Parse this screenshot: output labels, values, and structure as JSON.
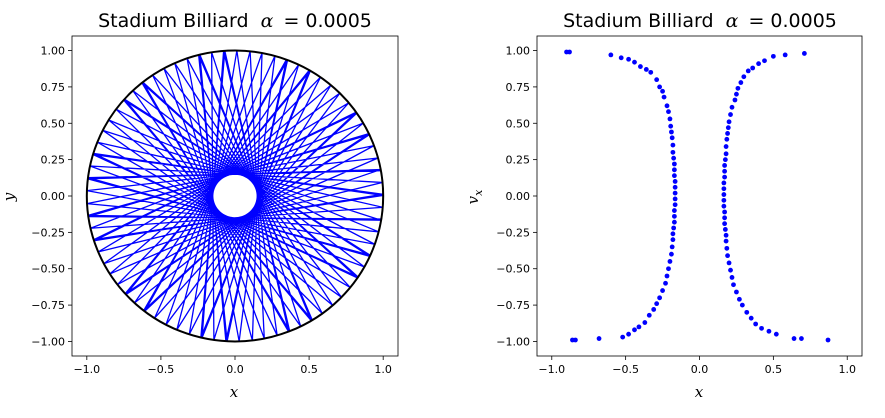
{
  "figure": {
    "charts": [
      {
        "title": "Stadium Billiard",
        "title_alpha_symbol": "α",
        "title_alpha_value": "= 0.0005",
        "xlabel": "x",
        "ylabel": "y",
        "x_ticks": [
          "−1.0",
          "−0.5",
          "0.0",
          "0.5",
          "1.0"
        ],
        "y_ticks": [
          "1.00",
          "0.75",
          "0.50",
          "0.25",
          "0.00",
          "−0.25",
          "−0.50",
          "−0.75",
          "−1.00"
        ]
      },
      {
        "title": "Stadium Billiard",
        "title_alpha_symbol": "α",
        "title_alpha_value": "= 0.0005",
        "xlabel": "x",
        "ylabel": "v",
        "ylabel_sub": "x",
        "x_ticks": [
          "−1.0",
          "−0.5",
          "0.0",
          "0.5",
          "1.0"
        ],
        "y_ticks": [
          "1.00",
          "0.75",
          "0.50",
          "0.25",
          "0.00",
          "−0.25",
          "−0.50",
          "−0.75",
          "−1.00"
        ]
      }
    ]
  },
  "chart_data": [
    {
      "type": "line",
      "xlim": [
        -1.1,
        1.1
      ],
      "ylim": [
        -1.1,
        1.1
      ],
      "x_tick_values": [
        -1.0,
        -0.5,
        0.0,
        0.5,
        1.0
      ],
      "y_tick_values": [
        1.0,
        0.75,
        0.5,
        0.25,
        0.0,
        -0.25,
        -0.5,
        -0.75,
        -1.0
      ],
      "boundary": {
        "shape": "circle",
        "radius": 1.0,
        "color": "#000000"
      },
      "trajectory": {
        "color": "#0000ff",
        "caustic_radius": 0.15,
        "num_segments": 95,
        "start_angle_deg": 10
      },
      "grid": false
    },
    {
      "type": "scatter",
      "xlim": [
        -1.1,
        1.1
      ],
      "ylim": [
        -1.1,
        1.1
      ],
      "x_tick_values": [
        -1.0,
        -0.5,
        0.0,
        0.5,
        1.0
      ],
      "y_tick_values": [
        1.0,
        0.75,
        0.5,
        0.25,
        0.0,
        -0.25,
        -0.5,
        -0.75,
        -1.0
      ],
      "color": "#0000ff",
      "grid": false,
      "points": [
        [
          -0.9,
          0.99
        ],
        [
          -0.88,
          0.99
        ],
        [
          -0.6,
          0.97
        ],
        [
          -0.53,
          0.95
        ],
        [
          -0.48,
          0.94
        ],
        [
          -0.44,
          0.92
        ],
        [
          -0.4,
          0.89
        ],
        [
          -0.36,
          0.87
        ],
        [
          -0.33,
          0.85
        ],
        [
          -0.29,
          0.8
        ],
        [
          -0.27,
          0.75
        ],
        [
          -0.25,
          0.72
        ],
        [
          -0.24,
          0.68
        ],
        [
          -0.22,
          0.62
        ],
        [
          -0.21,
          0.58
        ],
        [
          -0.2,
          0.53
        ],
        [
          -0.195,
          0.48
        ],
        [
          -0.19,
          0.44
        ],
        [
          -0.185,
          0.4
        ],
        [
          -0.18,
          0.35
        ],
        [
          -0.18,
          0.3
        ],
        [
          -0.175,
          0.26
        ],
        [
          -0.17,
          0.22
        ],
        [
          -0.17,
          0.18
        ],
        [
          -0.17,
          0.14
        ],
        [
          -0.165,
          0.1
        ],
        [
          -0.165,
          0.06
        ],
        [
          -0.165,
          0.02
        ],
        [
          -0.165,
          -0.02
        ],
        [
          -0.165,
          -0.06
        ],
        [
          -0.17,
          -0.1
        ],
        [
          -0.17,
          -0.14
        ],
        [
          -0.17,
          -0.18
        ],
        [
          -0.175,
          -0.22
        ],
        [
          -0.18,
          -0.26
        ],
        [
          -0.18,
          -0.3
        ],
        [
          -0.185,
          -0.35
        ],
        [
          -0.19,
          -0.4
        ],
        [
          -0.2,
          -0.45
        ],
        [
          -0.21,
          -0.5
        ],
        [
          -0.22,
          -0.55
        ],
        [
          -0.23,
          -0.6
        ],
        [
          -0.25,
          -0.65
        ],
        [
          -0.27,
          -0.7
        ],
        [
          -0.29,
          -0.74
        ],
        [
          -0.31,
          -0.78
        ],
        [
          -0.34,
          -0.82
        ],
        [
          -0.37,
          -0.87
        ],
        [
          -0.41,
          -0.9
        ],
        [
          -0.44,
          -0.92
        ],
        [
          -0.48,
          -0.95
        ],
        [
          -0.52,
          -0.97
        ],
        [
          -0.68,
          -0.98
        ],
        [
          -0.84,
          -0.99
        ],
        [
          -0.86,
          -0.99
        ],
        [
          0.71,
          0.98
        ],
        [
          0.58,
          0.97
        ],
        [
          0.5,
          0.96
        ],
        [
          0.44,
          0.93
        ],
        [
          0.4,
          0.91
        ],
        [
          0.36,
          0.88
        ],
        [
          0.33,
          0.86
        ],
        [
          0.3,
          0.82
        ],
        [
          0.28,
          0.78
        ],
        [
          0.26,
          0.74
        ],
        [
          0.25,
          0.7
        ],
        [
          0.24,
          0.66
        ],
        [
          0.22,
          0.61
        ],
        [
          0.21,
          0.56
        ],
        [
          0.2,
          0.51
        ],
        [
          0.195,
          0.47
        ],
        [
          0.19,
          0.43
        ],
        [
          0.185,
          0.39
        ],
        [
          0.18,
          0.34
        ],
        [
          0.18,
          0.29
        ],
        [
          0.175,
          0.25
        ],
        [
          0.17,
          0.21
        ],
        [
          0.17,
          0.17
        ],
        [
          0.17,
          0.13
        ],
        [
          0.165,
          0.09
        ],
        [
          0.165,
          0.05
        ],
        [
          0.165,
          0.01
        ],
        [
          0.165,
          -0.03
        ],
        [
          0.165,
          -0.07
        ],
        [
          0.17,
          -0.11
        ],
        [
          0.17,
          -0.15
        ],
        [
          0.17,
          -0.19
        ],
        [
          0.175,
          -0.23
        ],
        [
          0.18,
          -0.27
        ],
        [
          0.18,
          -0.31
        ],
        [
          0.185,
          -0.36
        ],
        [
          0.19,
          -0.41
        ],
        [
          0.2,
          -0.46
        ],
        [
          0.21,
          -0.51
        ],
        [
          0.22,
          -0.56
        ],
        [
          0.23,
          -0.61
        ],
        [
          0.25,
          -0.66
        ],
        [
          0.27,
          -0.71
        ],
        [
          0.29,
          -0.75
        ],
        [
          0.32,
          -0.8
        ],
        [
          0.35,
          -0.84
        ],
        [
          0.38,
          -0.88
        ],
        [
          0.42,
          -0.91
        ],
        [
          0.47,
          -0.93
        ],
        [
          0.52,
          -0.95
        ],
        [
          0.64,
          -0.98
        ],
        [
          0.69,
          -0.98
        ],
        [
          0.87,
          -0.99
        ]
      ]
    }
  ]
}
